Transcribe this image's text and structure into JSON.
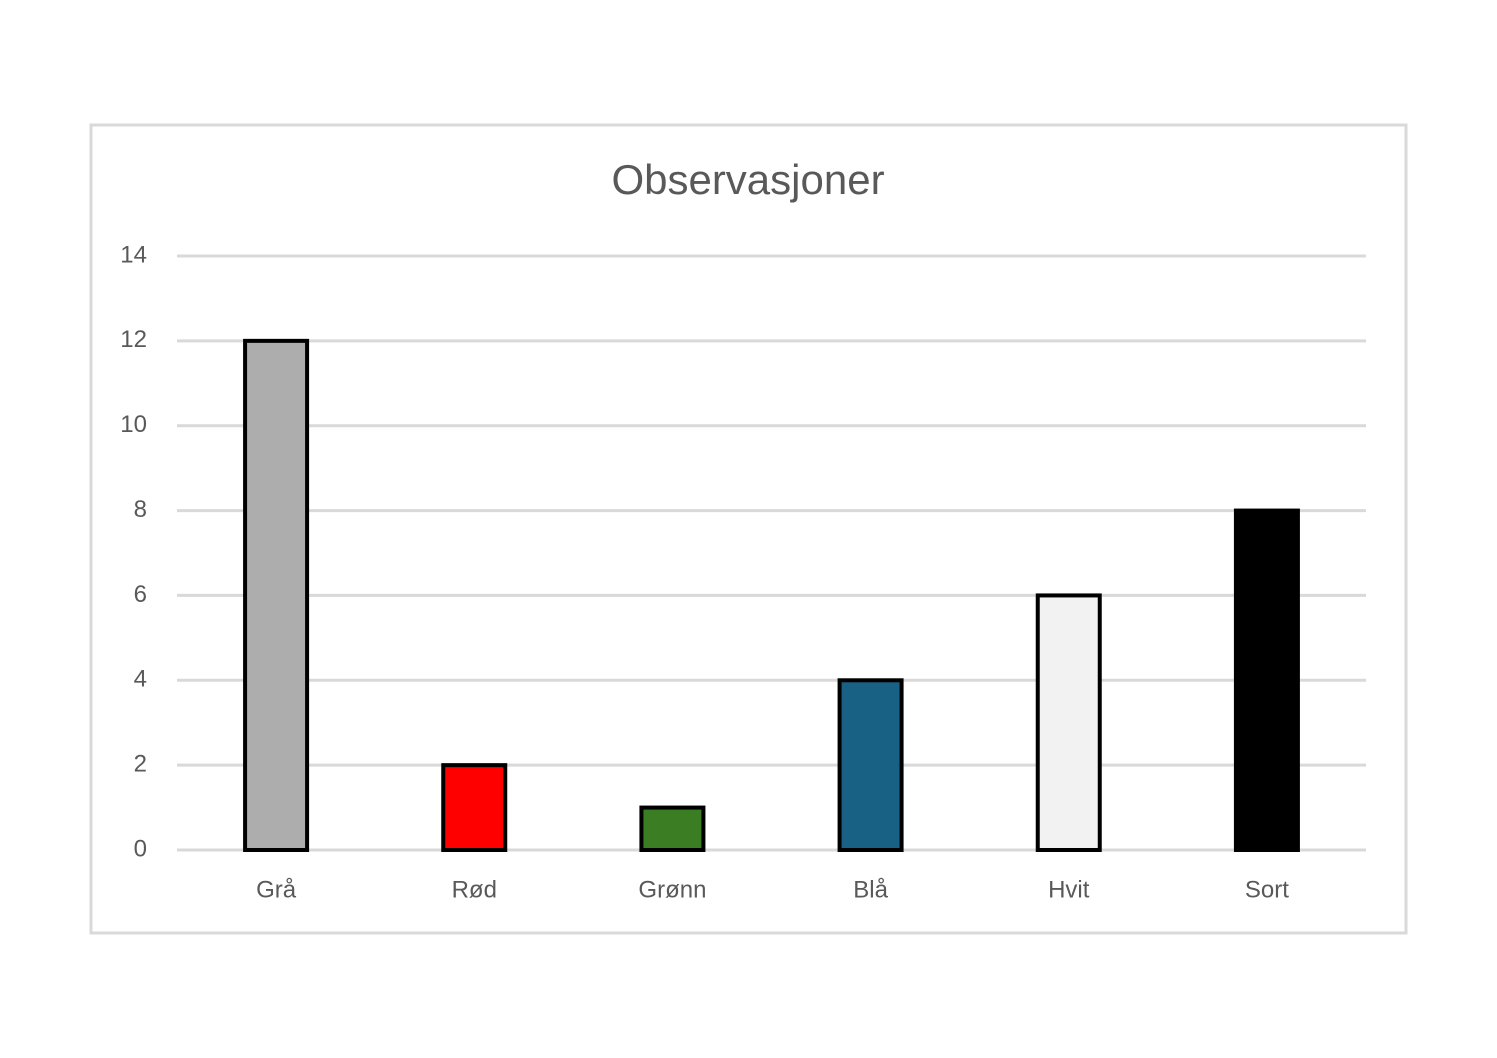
{
  "chart_data": {
    "type": "bar",
    "title": "Observasjoner",
    "categories": [
      "Grå",
      "Rød",
      "Grønn",
      "Blå",
      "Hvit",
      "Sort"
    ],
    "values": [
      12,
      2,
      1,
      4,
      6,
      8
    ],
    "colors": [
      "#adadad",
      "#ff0000",
      "#3a7d22",
      "#196184",
      "#f2f2f2",
      "#000000"
    ],
    "ylim": [
      0,
      14
    ],
    "yticks": [
      0,
      2,
      4,
      6,
      8,
      10,
      12,
      14
    ],
    "grid": true
  }
}
